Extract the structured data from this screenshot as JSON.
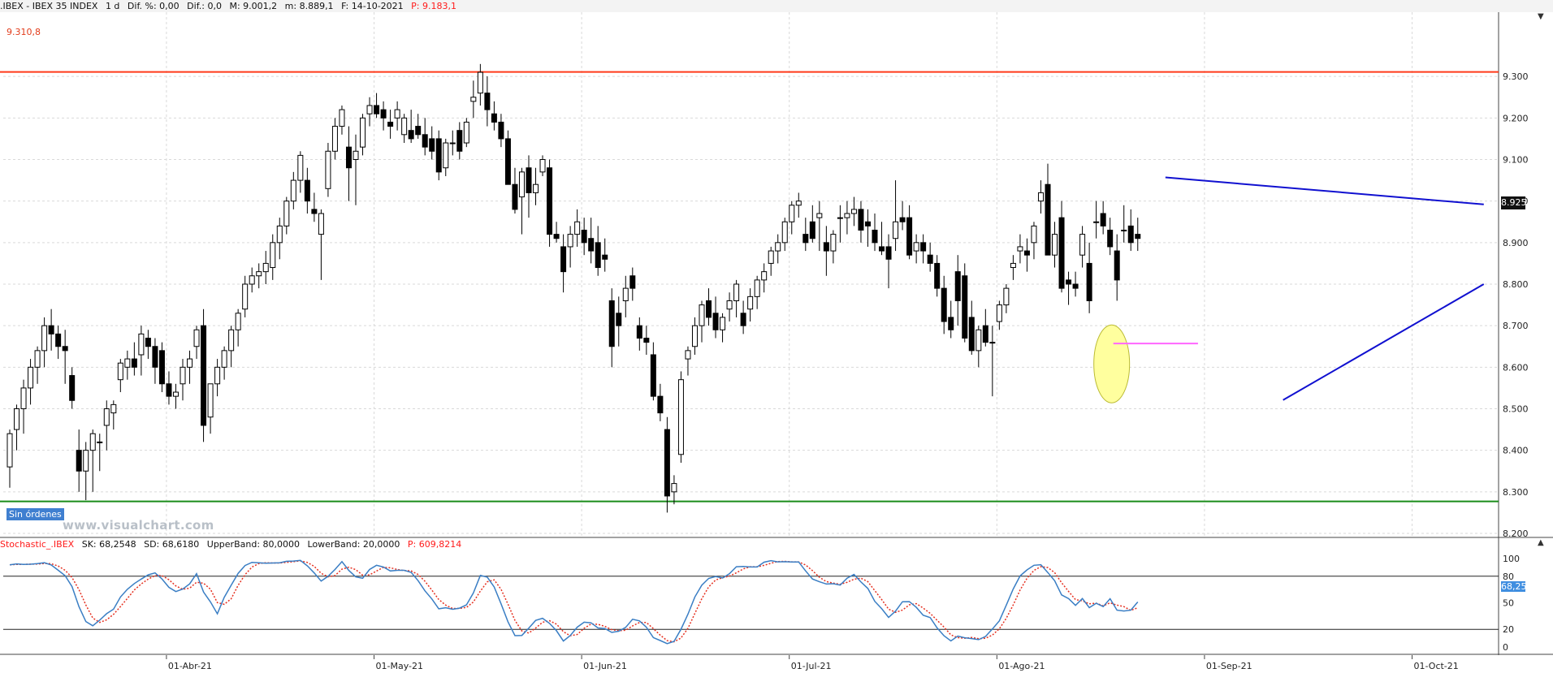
{
  "header": {
    "symbol": ".IBEX - IBEX 35 INDEX",
    "period": "1 d",
    "dif_pct": "Dif. %: 0,00",
    "dif": "Dif.: 0,0",
    "max": "M: 9.001,2",
    "min": "m: 8.889,1",
    "fecha": "F: 14-10-2021",
    "price": "P: 9.183,1"
  },
  "overlay": {
    "sin_ordenes": "Sin órdenes",
    "watermark": "www.visualchart.com",
    "level_label": "9.310,8",
    "last_price": "8.925"
  },
  "stochastic_header": {
    "name": "Stochastic_.IBEX",
    "sk": "SK: 68,2548",
    "sd": "SD: 68,6180",
    "upper": "UpperBand: 80,0000",
    "lower": "LowerBand: 20,0000",
    "price": "P: 609,8214",
    "last_value": "68,25"
  },
  "colors": {
    "up_candle": "#ffffff",
    "down_candle": "#000000",
    "resistance": "#ff3a1a",
    "support": "#1a8c1a",
    "trendline": "#1010d0",
    "highlight_fill": "#ffff9e",
    "highlight_line": "#ff66ff",
    "sk_line": "#3a7ec4",
    "sd_line": "#e53020"
  },
  "chart_data": {
    "type": "candlestick",
    "ylim": [
      8200,
      9400
    ],
    "yticks": [
      "9.300",
      "9.200",
      "9.100",
      "9.000",
      "8.900",
      "8.800",
      "8.700",
      "8.600",
      "8.500",
      "8.400",
      "8.300",
      "8.200"
    ],
    "ytick_values": [
      9300,
      9200,
      9100,
      9000,
      8900,
      8800,
      8700,
      8600,
      8500,
      8400,
      8300,
      8200
    ],
    "xticks": [
      "01-Abr-21",
      "01-May-21",
      "01-Jun-21",
      "01-Jul-21",
      "01-Ago-21",
      "01-Sep-21",
      "01-Oct-21"
    ],
    "xtick_index": [
      21,
      51,
      81,
      111,
      141,
      171,
      201
    ],
    "horizontal_levels": [
      {
        "value": 9310.8,
        "role": "resistance"
      },
      {
        "value": 8277,
        "role": "support"
      }
    ],
    "trendlines": [
      {
        "from": [
          167,
          9057
        ],
        "to": [
          213,
          8992
        ],
        "role": "resistance"
      },
      {
        "from": [
          184,
          8521
        ],
        "to": [
          213,
          8800
        ],
        "role": "support"
      }
    ],
    "candles": [
      [
        8360,
        8450,
        8310,
        8440
      ],
      [
        8450,
        8510,
        8400,
        8500
      ],
      [
        8500,
        8570,
        8440,
        8550
      ],
      [
        8550,
        8620,
        8510,
        8600
      ],
      [
        8600,
        8650,
        8560,
        8640
      ],
      [
        8640,
        8720,
        8600,
        8700
      ],
      [
        8700,
        8740,
        8640,
        8680
      ],
      [
        8680,
        8700,
        8620,
        8650
      ],
      [
        8650,
        8690,
        8560,
        8640
      ],
      [
        8580,
        8600,
        8500,
        8520
      ],
      [
        8400,
        8450,
        8300,
        8350
      ],
      [
        8350,
        8420,
        8280,
        8400
      ],
      [
        8400,
        8450,
        8300,
        8440
      ],
      [
        8420,
        8440,
        8350,
        8420
      ],
      [
        8460,
        8520,
        8400,
        8500
      ],
      [
        8490,
        8520,
        8450,
        8510
      ],
      [
        8570,
        8620,
        8540,
        8610
      ],
      [
        8600,
        8640,
        8570,
        8620
      ],
      [
        8620,
        8660,
        8580,
        8600
      ],
      [
        8630,
        8700,
        8580,
        8680
      ],
      [
        8670,
        8690,
        8620,
        8650
      ],
      [
        8650,
        8670,
        8560,
        8600
      ],
      [
        8640,
        8660,
        8540,
        8560
      ],
      [
        8560,
        8590,
        8510,
        8530
      ],
      [
        8530,
        8560,
        8500,
        8540
      ],
      [
        8560,
        8620,
        8520,
        8600
      ],
      [
        8600,
        8640,
        8560,
        8620
      ],
      [
        8650,
        8700,
        8620,
        8690
      ],
      [
        8700,
        8740,
        8420,
        8460
      ],
      [
        8480,
        8560,
        8440,
        8560
      ],
      [
        8560,
        8620,
        8530,
        8600
      ],
      [
        8600,
        8650,
        8570,
        8640
      ],
      [
        8640,
        8700,
        8600,
        8690
      ],
      [
        8690,
        8740,
        8650,
        8730
      ],
      [
        8740,
        8820,
        8720,
        8800
      ],
      [
        8800,
        8840,
        8780,
        8820
      ],
      [
        8820,
        8850,
        8790,
        8830
      ],
      [
        8830,
        8880,
        8800,
        8850
      ],
      [
        8840,
        8920,
        8810,
        8900
      ],
      [
        8900,
        8960,
        8860,
        8940
      ],
      [
        8940,
        9010,
        8920,
        9000
      ],
      [
        9000,
        9070,
        8980,
        9050
      ],
      [
        9050,
        9120,
        9020,
        9110
      ],
      [
        9050,
        9080,
        8970,
        9000
      ],
      [
        8980,
        9020,
        8950,
        8970
      ],
      [
        8920,
        8980,
        8810,
        8970
      ],
      [
        9030,
        9140,
        9010,
        9120
      ],
      [
        9120,
        9200,
        9100,
        9180
      ],
      [
        9180,
        9230,
        9160,
        9220
      ],
      [
        9130,
        9180,
        9000,
        9080
      ],
      [
        9100,
        9160,
        8990,
        9120
      ],
      [
        9130,
        9210,
        9110,
        9200
      ],
      [
        9210,
        9250,
        9180,
        9230
      ],
      [
        9230,
        9260,
        9200,
        9210
      ],
      [
        9220,
        9240,
        9170,
        9200
      ],
      [
        9190,
        9220,
        9150,
        9180
      ],
      [
        9200,
        9240,
        9170,
        9220
      ],
      [
        9160,
        9210,
        9140,
        9200
      ],
      [
        9170,
        9220,
        9140,
        9150
      ],
      [
        9180,
        9210,
        9150,
        9160
      ],
      [
        9160,
        9200,
        9110,
        9130
      ],
      [
        9150,
        9180,
        9100,
        9120
      ],
      [
        9150,
        9170,
        9050,
        9070
      ],
      [
        9080,
        9150,
        9060,
        9140
      ],
      [
        9140,
        9170,
        9110,
        9140
      ],
      [
        9170,
        9190,
        9100,
        9120
      ],
      [
        9140,
        9200,
        9130,
        9190
      ],
      [
        9240,
        9290,
        9200,
        9250
      ],
      [
        9260,
        9330,
        9230,
        9310
      ],
      [
        9260,
        9300,
        9180,
        9220
      ],
      [
        9210,
        9240,
        9170,
        9190
      ],
      [
        9190,
        9210,
        9130,
        9150
      ],
      [
        9150,
        9170,
        9040,
        9040
      ],
      [
        9040,
        9080,
        8970,
        8980
      ],
      [
        9010,
        9080,
        8920,
        9070
      ],
      [
        9080,
        9110,
        8960,
        9020
      ],
      [
        9020,
        9080,
        8990,
        9040
      ],
      [
        9070,
        9110,
        9060,
        9100
      ],
      [
        9080,
        9100,
        8890,
        8920
      ],
      [
        8920,
        8950,
        8900,
        8910
      ],
      [
        8890,
        8920,
        8780,
        8830
      ],
      [
        8890,
        8940,
        8840,
        8920
      ],
      [
        8920,
        8980,
        8890,
        8950
      ],
      [
        8930,
        8960,
        8870,
        8900
      ],
      [
        8910,
        8960,
        8850,
        8880
      ],
      [
        8900,
        8940,
        8820,
        8840
      ],
      [
        8870,
        8910,
        8830,
        8860
      ],
      [
        8760,
        8790,
        8600,
        8650
      ],
      [
        8730,
        8770,
        8650,
        8700
      ],
      [
        8760,
        8820,
        8720,
        8790
      ],
      [
        8820,
        8840,
        8760,
        8790
      ],
      [
        8700,
        8720,
        8640,
        8670
      ],
      [
        8670,
        8700,
        8630,
        8660
      ],
      [
        8630,
        8660,
        8520,
        8530
      ],
      [
        8530,
        8560,
        8470,
        8490
      ],
      [
        8450,
        8480,
        8250,
        8290
      ],
      [
        8300,
        8340,
        8270,
        8320
      ],
      [
        8390,
        8590,
        8370,
        8570
      ],
      [
        8620,
        8650,
        8580,
        8640
      ],
      [
        8650,
        8720,
        8630,
        8700
      ],
      [
        8700,
        8760,
        8660,
        8750
      ],
      [
        8760,
        8790,
        8700,
        8720
      ],
      [
        8730,
        8770,
        8670,
        8690
      ],
      [
        8690,
        8730,
        8660,
        8720
      ],
      [
        8740,
        8780,
        8710,
        8760
      ],
      [
        8760,
        8810,
        8720,
        8800
      ],
      [
        8730,
        8760,
        8680,
        8700
      ],
      [
        8740,
        8790,
        8710,
        8770
      ],
      [
        8770,
        8820,
        8740,
        8810
      ],
      [
        8810,
        8850,
        8780,
        8830
      ],
      [
        8850,
        8890,
        8820,
        8880
      ],
      [
        8880,
        8920,
        8850,
        8900
      ],
      [
        8900,
        8960,
        8880,
        8950
      ],
      [
        8950,
        9000,
        8920,
        8990
      ],
      [
        8990,
        9020,
        8960,
        9000
      ],
      [
        8920,
        8960,
        8880,
        8900
      ],
      [
        8950,
        8990,
        8900,
        8910
      ],
      [
        8960,
        9000,
        8880,
        8970
      ],
      [
        8900,
        8940,
        8820,
        8880
      ],
      [
        8880,
        8930,
        8850,
        8920
      ],
      [
        8960,
        8990,
        8900,
        8960
      ],
      [
        8960,
        9000,
        8920,
        8970
      ],
      [
        8970,
        9010,
        8940,
        8980
      ],
      [
        8980,
        9000,
        8900,
        8930
      ],
      [
        8950,
        8980,
        8890,
        8940
      ],
      [
        8930,
        8970,
        8880,
        8900
      ],
      [
        8890,
        8950,
        8870,
        8880
      ],
      [
        8890,
        8920,
        8790,
        8860
      ],
      [
        8910,
        9050,
        8880,
        8950
      ],
      [
        8960,
        9000,
        8930,
        8950
      ],
      [
        8960,
        8990,
        8860,
        8870
      ],
      [
        8880,
        8920,
        8850,
        8900
      ],
      [
        8900,
        8920,
        8850,
        8880
      ],
      [
        8870,
        8900,
        8830,
        8850
      ],
      [
        8850,
        8870,
        8770,
        8790
      ],
      [
        8790,
        8820,
        8680,
        8710
      ],
      [
        8720,
        8760,
        8670,
        8690
      ],
      [
        8830,
        8870,
        8700,
        8760
      ],
      [
        8820,
        8850,
        8660,
        8670
      ],
      [
        8720,
        8760,
        8630,
        8640
      ],
      [
        8640,
        8700,
        8600,
        8690
      ],
      [
        8700,
        8740,
        8650,
        8660
      ],
      [
        8660,
        8700,
        8530,
        8660
      ],
      [
        8710,
        8760,
        8690,
        8750
      ],
      [
        8750,
        8800,
        8730,
        8790
      ],
      [
        8840,
        8870,
        8810,
        8850
      ],
      [
        8880,
        8920,
        8850,
        8890
      ],
      [
        8880,
        8910,
        8830,
        8870
      ],
      [
        8900,
        8950,
        8860,
        8940
      ],
      [
        9000,
        9050,
        8970,
        9020
      ],
      [
        9040,
        9090,
        8870,
        8870
      ],
      [
        8870,
        8950,
        8840,
        8920
      ],
      [
        8960,
        9000,
        8780,
        8790
      ],
      [
        8810,
        8830,
        8750,
        8800
      ],
      [
        8800,
        8830,
        8770,
        8790
      ],
      [
        8870,
        8940,
        8840,
        8920
      ],
      [
        8850,
        8900,
        8730,
        8760
      ],
      [
        8950,
        9000,
        8910,
        8950
      ],
      [
        8970,
        9000,
        8920,
        8940
      ],
      [
        8930,
        8960,
        8870,
        8890
      ],
      [
        8880,
        8920,
        8760,
        8810
      ],
      [
        8930,
        8990,
        8900,
        8930
      ],
      [
        8940,
        8980,
        8880,
        8900
      ],
      [
        8920,
        8960,
        8880,
        8910
      ]
    ]
  }
}
